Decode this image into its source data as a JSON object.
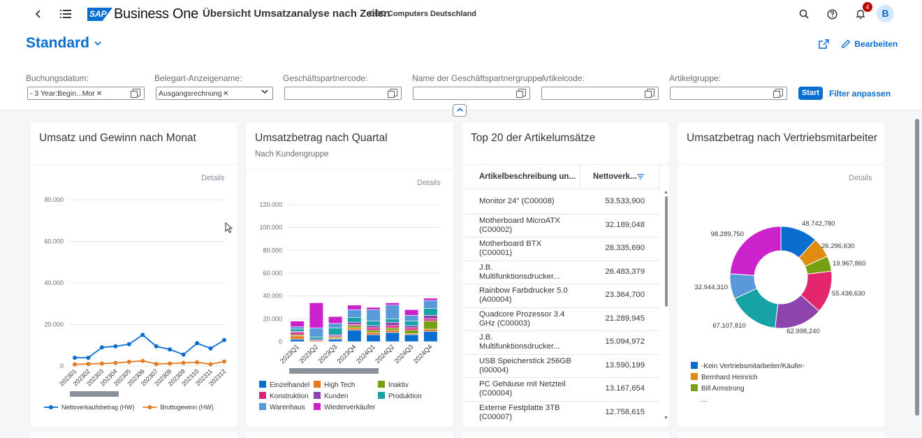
{
  "shell": {
    "logo_mark": "SAP",
    "logo_text": "Business One",
    "app_title": "Übersicht Umsatzanalyse nach Zeilen",
    "company": "OEC Computers Deutschland",
    "notification_count": "4",
    "avatar_initial": "B"
  },
  "header": {
    "variant": "Standard",
    "variant_modified": "*",
    "edit_label": "Bearbeiten",
    "filters": [
      {
        "label": "Buchungsdatum:",
        "token": "- 3 Year:Begin...Mor",
        "type": "multi"
      },
      {
        "label": "Belegart-Anzeigename:",
        "token": "Ausgangsrechnung",
        "type": "select"
      },
      {
        "label": "Geschäftspartnercode:",
        "token": "",
        "type": "multi"
      },
      {
        "label": "Name der Geschäftspartnergruppe:",
        "token": "",
        "type": "multi"
      },
      {
        "label": "Artikelcode:",
        "token": "",
        "type": "multi"
      },
      {
        "label": "Artikelgruppe:",
        "token": "",
        "type": "multi"
      }
    ],
    "start_label": "Start",
    "adapt_label": "Filter anpassen"
  },
  "cards": {
    "monthly": {
      "title": "Umsatz und Gewinn nach Monat",
      "details": "Details"
    },
    "quarterly": {
      "title": "Umsatzbetrag nach Quartal",
      "subtitle": "Nach Kundengruppe",
      "details": "Details"
    },
    "top20": {
      "title": "Top 20 der Artikelumsätze",
      "col_desc": "Artikelbeschreibung un...",
      "col_value": "Nettoverk...",
      "rows": [
        {
          "desc": "Monitor 24\" (C00008)",
          "value": "53.533,900"
        },
        {
          "desc": "Motherboard MicroATX (C00002)",
          "value": "32.189,048"
        },
        {
          "desc": "Motherboard BTX (C00001)",
          "value": "28.335,690"
        },
        {
          "desc": "J.B. Multifunktionsdrucker...",
          "value": "26.483,379"
        },
        {
          "desc": "Rainbow Farbdrucker 5.0 (A00004)",
          "value": "23.364,700"
        },
        {
          "desc": "Quadcore Prozessor 3.4 GHz (C00003)",
          "value": "21.289,945"
        },
        {
          "desc": "J.B. Multifunktionsdrucker...",
          "value": "15.094,972"
        },
        {
          "desc": "USB Speicherstick 256GB (I00004)",
          "value": "13.590,199"
        },
        {
          "desc": "PC Gehäuse mit Netzteil (C00004)",
          "value": "13.167,654"
        },
        {
          "desc": "Externe Festplatte 3TB (C00007)",
          "value": "12.758,615"
        }
      ]
    },
    "salesperson": {
      "title": "Umsatzbetrag nach Vertriebsmitarbeiter",
      "details": "Details"
    }
  },
  "chart_data": [
    {
      "type": "line",
      "x": [
        "202301",
        "202302",
        "202303",
        "202304",
        "202305",
        "202306",
        "202307",
        "202308",
        "202309",
        "202310",
        "202311",
        "202312"
      ],
      "ylim": [
        0,
        80000
      ],
      "yticks": [
        "0",
        "20.000",
        "40.000",
        "60.000",
        "80.000"
      ],
      "series": [
        {
          "name": "Nettoverkaufsbetrag (HW)",
          "color": "#0a6ed1",
          "values": [
            4000,
            4000,
            9000,
            9500,
            10500,
            15000,
            9500,
            8000,
            5500,
            11000,
            8500,
            12500
          ]
        },
        {
          "name": "Bruttogewinn (HW)",
          "color": "#e17b24",
          "values": [
            800,
            1000,
            1200,
            1500,
            2000,
            2500,
            1000,
            1200,
            1500,
            1800,
            900,
            2200
          ]
        }
      ]
    },
    {
      "type": "bar",
      "stacked": true,
      "categories": [
        "2023Q1",
        "2023Q2",
        "2023Q3",
        "2023Q4",
        "2024Q1",
        "2024Q2",
        "2024Q3",
        "2024Q4"
      ],
      "ylim": [
        0,
        120000
      ],
      "yticks": [
        "0",
        "20.000",
        "40.000",
        "60.000",
        "80.000",
        "100.000",
        "120.000"
      ],
      "series": [
        {
          "name": "Einzelhandel",
          "color": "#0a6ed1",
          "values": [
            2000,
            0,
            2000,
            10000,
            6000,
            8000,
            6000,
            9000
          ]
        },
        {
          "name": "High Tech",
          "color": "#e17b24",
          "values": [
            3000,
            1000,
            1000,
            2000,
            2000,
            2000,
            1000,
            2000
          ]
        },
        {
          "name": "Inaktiv",
          "color": "#76a011",
          "values": [
            1000,
            0,
            1000,
            2000,
            2000,
            2000,
            3000,
            7000
          ]
        },
        {
          "name": "Konstruktion",
          "color": "#d9257a",
          "values": [
            2000,
            0,
            1000,
            1000,
            2000,
            2000,
            2000,
            2000
          ]
        },
        {
          "name": "Kunden",
          "color": "#8e44ad",
          "values": [
            1000,
            1000,
            1000,
            2000,
            2000,
            3000,
            2000,
            3000
          ]
        },
        {
          "name": "Produktion",
          "color": "#17a2a6",
          "values": [
            2000,
            2000,
            6000,
            4000,
            4000,
            3000,
            4000,
            6000
          ]
        },
        {
          "name": "Warenhaus",
          "color": "#5899da",
          "values": [
            2000,
            8000,
            4000,
            7000,
            10000,
            12000,
            5000,
            7000
          ]
        },
        {
          "name": "Wiederverkäufer",
          "color": "#cc22cc",
          "values": [
            5000,
            22000,
            6000,
            4000,
            2000,
            2000,
            5000,
            2000
          ]
        }
      ]
    },
    {
      "type": "pie",
      "donut": true,
      "slices": [
        {
          "label": "48.742,780",
          "value": 48742.78,
          "color": "#0a6ed1"
        },
        {
          "label": "26.296,630",
          "value": 26296.63,
          "color": "#e08c10"
        },
        {
          "label": "19.967,860",
          "value": 19967.86,
          "color": "#76a011"
        },
        {
          "label": "55.438,630",
          "value": 55438.63,
          "color": "#e4266d"
        },
        {
          "label": "62.998,240",
          "value": 62998.24,
          "color": "#8e44ad"
        },
        {
          "label": "67.107,810",
          "value": 67107.81,
          "color": "#17a2a6"
        },
        {
          "label": "32.944,310",
          "value": 32944.31,
          "color": "#5899da"
        },
        {
          "label": "98.289,750",
          "value": 98289.75,
          "color": "#cc22cc"
        }
      ],
      "legend": [
        "-Kein Vertriebsmitarbeiter/Käufer-",
        "Bernhard Heinrich",
        "Bill Armstrong",
        "..."
      ]
    }
  ]
}
